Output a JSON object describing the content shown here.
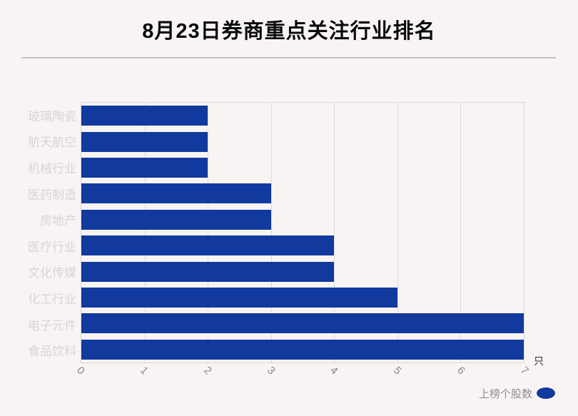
{
  "title": "8月23日券商重点关注行业排名",
  "chart_data": {
    "type": "bar",
    "orientation": "horizontal",
    "title": "8月23日券商重点关注行业排名",
    "categories": [
      "玻璃陶瓷",
      "航天航空",
      "机械行业",
      "医药制造",
      "房地产",
      "医疗行业",
      "文化传媒",
      "化工行业",
      "电子元件",
      "食品饮料"
    ],
    "values": [
      2,
      2,
      2,
      3,
      3,
      4,
      4,
      5,
      7,
      7
    ],
    "series_name": "上榜个股数",
    "unit": "只",
    "xlabel": "",
    "ylabel": "",
    "xlim": [
      0,
      7
    ],
    "x_ticks": [
      "0",
      "1",
      "2",
      "3",
      "4",
      "5",
      "6",
      "7"
    ],
    "x_tick_rotation": 45,
    "grid": true,
    "legend": [
      "上榜个股数"
    ],
    "legend_position": "bottom-right",
    "bar_color": "#11399e",
    "background_color": "#f8f4f3",
    "y_label_color": "#d8d4d4",
    "x_label_color": "#8a8888"
  }
}
